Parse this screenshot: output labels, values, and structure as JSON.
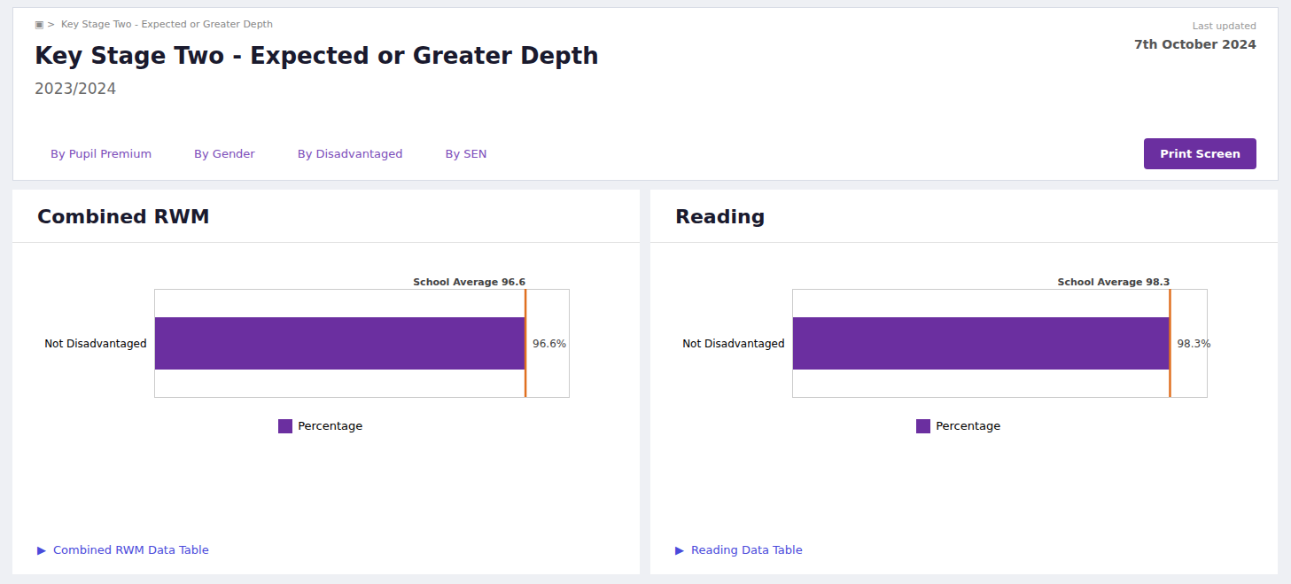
{
  "title": "Key Stage Two - Expected or Greater Depth",
  "subtitle": "2023/2024",
  "annotations": [
    {
      "text": "▣"
    },
    {
      "text": ">  Key Stage Two - Expected or Greater Depth"
    },
    {
      "text": "Last updated"
    },
    {
      "text": "7th October 2024"
    },
    {
      "text": "By Pupil Premium"
    },
    {
      "text": "By Gender"
    },
    {
      "text": "By Disadvantaged"
    },
    {
      "text": "By SEN"
    },
    {
      "text": "Print Screen"
    }
  ],
  "chart_data": [
    {
      "type": "bar",
      "orientation": "horizontal",
      "title": "Combined RWM",
      "categories": [
        "Not Disadvantaged"
      ],
      "series": [
        {
          "name": "Percentage",
          "color": "#6b2fa0",
          "values": [
            96.6
          ],
          "value_labels": [
            "96.6%"
          ]
        }
      ],
      "data_labels": true,
      "legend": "bottom",
      "tick_labels": "y",
      "grid": false,
      "xlim": [
        0,
        108
      ],
      "annotations": [
        {
          "text": "School Average 96.6",
          "x": 96.6,
          "color": "#e07020"
        },
        {
          "text": "▶"
        },
        {
          "text": "Combined RWM Data Table"
        }
      ]
    },
    {
      "type": "bar",
      "orientation": "horizontal",
      "title": "Reading",
      "categories": [
        "Not Disadvantaged"
      ],
      "series": [
        {
          "name": "Percentage",
          "color": "#6b2fa0",
          "values": [
            98.3
          ],
          "value_labels": [
            "98.3%"
          ]
        }
      ],
      "data_labels": true,
      "legend": "bottom",
      "tick_labels": "y",
      "grid": false,
      "xlim": [
        0,
        108
      ],
      "annotations": [
        {
          "text": "School Average 98.3",
          "x": 98.3,
          "color": "#e07020"
        },
        {
          "text": "▶"
        },
        {
          "text": "Reading Data Table"
        }
      ]
    }
  ]
}
